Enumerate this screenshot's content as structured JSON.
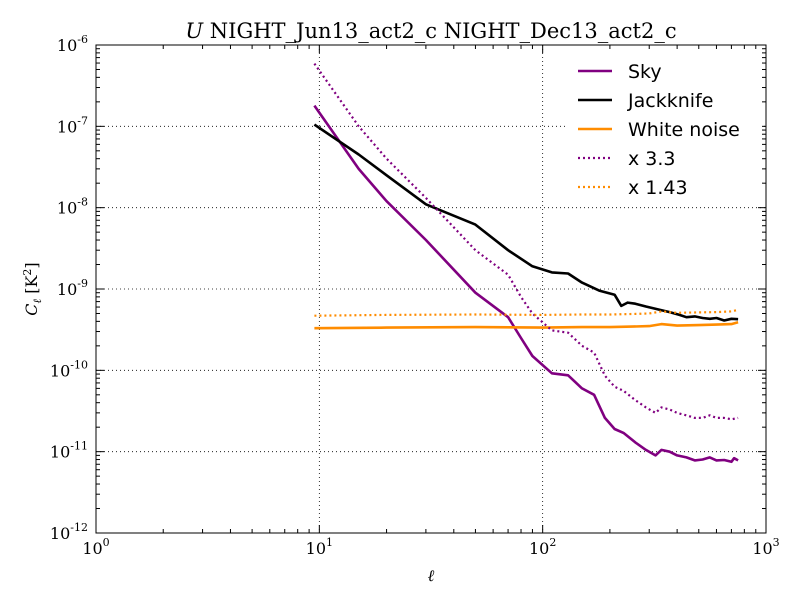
{
  "chart_data": {
    "type": "line",
    "title": "U NIGHT_Jun13_act2_c NIGHT_Dec13_act2_c",
    "title_parts": {
      "italic": "U",
      "rest": " NIGHT_Jun13_act2_c NIGHT_Dec13_act2_c"
    },
    "xlabel": "ℓ",
    "ylabel": "C_ℓ [K²]",
    "xscale": "log",
    "yscale": "log",
    "xlim": [
      1,
      1000
    ],
    "ylim": [
      1e-12,
      1e-06
    ],
    "xticks": [
      {
        "base": "10",
        "exp": "0",
        "value": 1
      },
      {
        "base": "10",
        "exp": "1",
        "value": 10
      },
      {
        "base": "10",
        "exp": "2",
        "value": 100
      },
      {
        "base": "10",
        "exp": "3",
        "value": 1000
      }
    ],
    "yticks": [
      {
        "base": "10",
        "exp": "-12",
        "value": 1e-12
      },
      {
        "base": "10",
        "exp": "-11",
        "value": 1e-11
      },
      {
        "base": "10",
        "exp": "-10",
        "value": 1e-10
      },
      {
        "base": "10",
        "exp": "-9",
        "value": 1e-09
      },
      {
        "base": "10",
        "exp": "-8",
        "value": 1e-08
      },
      {
        "base": "10",
        "exp": "-7",
        "value": 1e-07
      },
      {
        "base": "10",
        "exp": "-6",
        "value": 1e-06
      }
    ],
    "grid": true,
    "legend_position": "top-right",
    "series": [
      {
        "name": "Sky",
        "color": "#800080",
        "style": "solid",
        "points": [
          [
            9.5,
            1.8e-07
          ],
          [
            15,
            3e-08
          ],
          [
            20,
            1.2e-08
          ],
          [
            30,
            4e-09
          ],
          [
            50,
            9e-10
          ],
          [
            70,
            4.5e-10
          ],
          [
            80,
            2.5e-10
          ],
          [
            90,
            1.5e-10
          ],
          [
            110,
            9.2e-11
          ],
          [
            130,
            8.7e-11
          ],
          [
            150,
            6e-11
          ],
          [
            170,
            5e-11
          ],
          [
            190,
            2.6e-11
          ],
          [
            210,
            1.9e-11
          ],
          [
            230,
            1.7e-11
          ],
          [
            260,
            1.3e-11
          ],
          [
            290,
            1.05e-11
          ],
          [
            320,
            9e-12
          ],
          [
            340,
            1.05e-11
          ],
          [
            370,
            1e-11
          ],
          [
            400,
            9e-12
          ],
          [
            440,
            8.5e-12
          ],
          [
            480,
            7.8e-12
          ],
          [
            520,
            8e-12
          ],
          [
            560,
            8.5e-12
          ],
          [
            600,
            7.8e-12
          ],
          [
            650,
            7.9e-12
          ],
          [
            700,
            7.5e-12
          ],
          [
            720,
            8.3e-12
          ],
          [
            750,
            7.8e-12
          ]
        ]
      },
      {
        "name": "Jackknife",
        "color": "#000000",
        "style": "solid",
        "points": [
          [
            9.5,
            1.05e-07
          ],
          [
            15,
            4.5e-08
          ],
          [
            20,
            2.5e-08
          ],
          [
            30,
            1.1e-08
          ],
          [
            50,
            6.2e-09
          ],
          [
            70,
            3e-09
          ],
          [
            90,
            1.9e-09
          ],
          [
            110,
            1.6e-09
          ],
          [
            130,
            1.55e-09
          ],
          [
            150,
            1.2e-09
          ],
          [
            180,
            9.5e-10
          ],
          [
            210,
            8.5e-10
          ],
          [
            225,
            6.2e-10
          ],
          [
            240,
            6.8e-10
          ],
          [
            260,
            6.6e-10
          ],
          [
            290,
            6.1e-10
          ],
          [
            330,
            5.6e-10
          ],
          [
            370,
            5.2e-10
          ],
          [
            410,
            4.8e-10
          ],
          [
            440,
            4.5e-10
          ],
          [
            480,
            4.6e-10
          ],
          [
            520,
            4.4e-10
          ],
          [
            560,
            4.3e-10
          ],
          [
            600,
            4.4e-10
          ],
          [
            650,
            4.1e-10
          ],
          [
            700,
            4.3e-10
          ],
          [
            750,
            4.25e-10
          ]
        ]
      },
      {
        "name": "White noise",
        "color": "#ff8c00",
        "style": "solid",
        "points": [
          [
            9.5,
            3.3e-10
          ],
          [
            20,
            3.35e-10
          ],
          [
            50,
            3.4e-10
          ],
          [
            100,
            3.35e-10
          ],
          [
            150,
            3.4e-10
          ],
          [
            200,
            3.4e-10
          ],
          [
            250,
            3.45e-10
          ],
          [
            300,
            3.5e-10
          ],
          [
            340,
            3.7e-10
          ],
          [
            400,
            3.55e-10
          ],
          [
            500,
            3.6e-10
          ],
          [
            600,
            3.65e-10
          ],
          [
            700,
            3.7e-10
          ],
          [
            750,
            3.9e-10
          ]
        ]
      },
      {
        "name": "x 3.3",
        "color": "#800080",
        "style": "dotted",
        "points": [
          [
            9.5,
            5.9e-07
          ],
          [
            15,
            1e-07
          ],
          [
            20,
            4e-08
          ],
          [
            30,
            1.32e-08
          ],
          [
            50,
            3e-09
          ],
          [
            70,
            1.5e-09
          ],
          [
            80,
            8e-10
          ],
          [
            90,
            5e-10
          ],
          [
            110,
            3.1e-10
          ],
          [
            130,
            2.9e-10
          ],
          [
            150,
            2e-10
          ],
          [
            170,
            1.65e-10
          ],
          [
            190,
            8.6e-11
          ],
          [
            210,
            6.3e-11
          ],
          [
            230,
            5.6e-11
          ],
          [
            260,
            4.3e-11
          ],
          [
            290,
            3.5e-11
          ],
          [
            320,
            3e-11
          ],
          [
            340,
            3.5e-11
          ],
          [
            370,
            3.3e-11
          ],
          [
            400,
            3e-11
          ],
          [
            440,
            2.8e-11
          ],
          [
            480,
            2.6e-11
          ],
          [
            520,
            2.6e-11
          ],
          [
            560,
            2.8e-11
          ],
          [
            600,
            2.6e-11
          ],
          [
            650,
            2.6e-11
          ],
          [
            700,
            2.5e-11
          ],
          [
            750,
            2.6e-11
          ]
        ]
      },
      {
        "name": "x 1.43",
        "color": "#ff8c00",
        "style": "dotted",
        "points": [
          [
            9.5,
            4.7e-10
          ],
          [
            20,
            4.8e-10
          ],
          [
            50,
            4.86e-10
          ],
          [
            100,
            4.8e-10
          ],
          [
            150,
            4.86e-10
          ],
          [
            200,
            4.86e-10
          ],
          [
            250,
            4.93e-10
          ],
          [
            300,
            5e-10
          ],
          [
            340,
            5.3e-10
          ],
          [
            400,
            5.1e-10
          ],
          [
            500,
            5.15e-10
          ],
          [
            600,
            5.2e-10
          ],
          [
            700,
            5.3e-10
          ],
          [
            750,
            5.55e-10
          ]
        ]
      }
    ]
  }
}
